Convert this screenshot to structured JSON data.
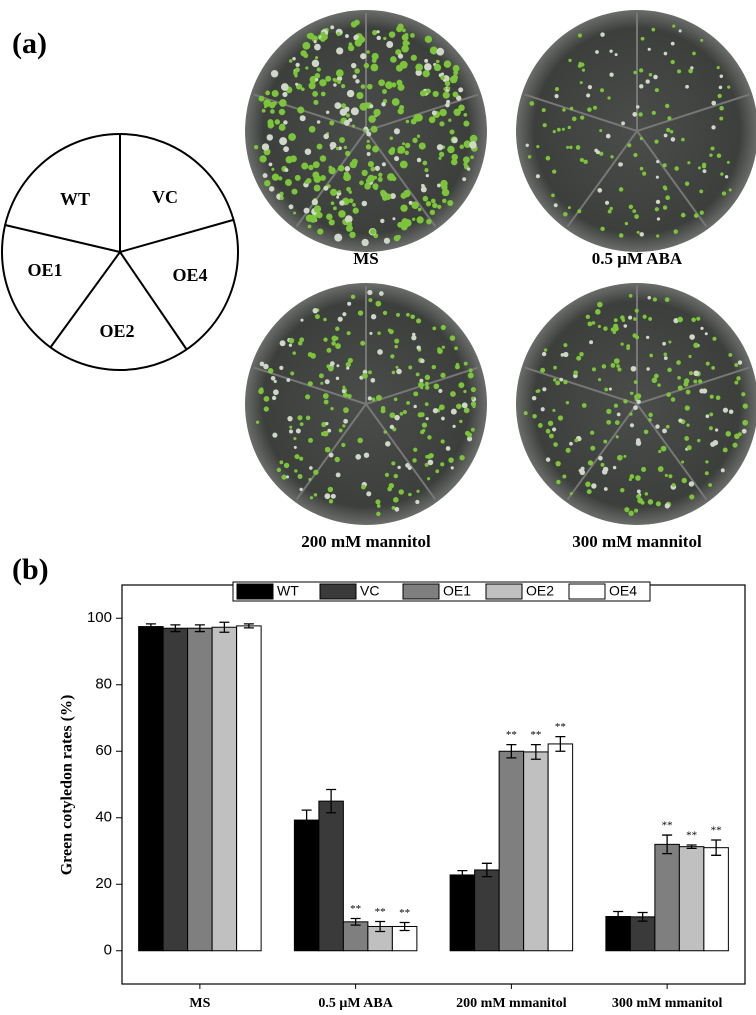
{
  "panel_a": {
    "label": "(a)",
    "diagram": [
      "WT",
      "VC",
      "OE1",
      "OE4",
      "OE2"
    ],
    "captions": [
      "MS",
      "0.5 μM ABA",
      "200 mM mannitol",
      "300 mM mannitol"
    ]
  },
  "panel_b": {
    "label": "(b)"
  },
  "chart_data": {
    "type": "bar",
    "ylabel": "Green cotyledon rates (%)",
    "categories": [
      "MS",
      "0.5 μM ABA",
      "200 mM mmanitol",
      "300 mM mmanitol"
    ],
    "series": [
      {
        "name": "WT",
        "color": "#000000",
        "values": [
          97.5,
          39.3,
          22.8,
          10.3
        ],
        "errors": [
          0.8,
          3,
          1.3,
          1.5
        ],
        "significance": [
          null,
          null,
          null,
          null
        ]
      },
      {
        "name": "VC",
        "color": "#3a3a3a",
        "values": [
          97,
          45,
          24.3,
          10.2
        ],
        "errors": [
          1,
          3.5,
          2,
          1.3
        ],
        "significance": [
          null,
          null,
          null,
          null
        ]
      },
      {
        "name": "OE1",
        "color": "#7f7f7f",
        "values": [
          97,
          8.7,
          60,
          32
        ],
        "errors": [
          1,
          1,
          2,
          2.8
        ],
        "significance": [
          null,
          "**",
          "**",
          "**"
        ]
      },
      {
        "name": "OE2",
        "color": "#c0c0c0",
        "values": [
          97.3,
          7.3,
          59.8,
          31.3
        ],
        "errors": [
          1.5,
          1.5,
          2.2,
          0.5
        ],
        "significance": [
          null,
          "**",
          "**",
          "**"
        ]
      },
      {
        "name": "OE4",
        "color": "#ffffff",
        "values": [
          97.7,
          7.3,
          62.2,
          31
        ],
        "errors": [
          0.6,
          1.2,
          2.2,
          2.3
        ],
        "significance": [
          null,
          "**",
          "**",
          "**"
        ]
      }
    ],
    "ylim": [
      -10,
      110
    ],
    "yticks": [
      0,
      20,
      40,
      60,
      80,
      100
    ],
    "legend": "top"
  }
}
